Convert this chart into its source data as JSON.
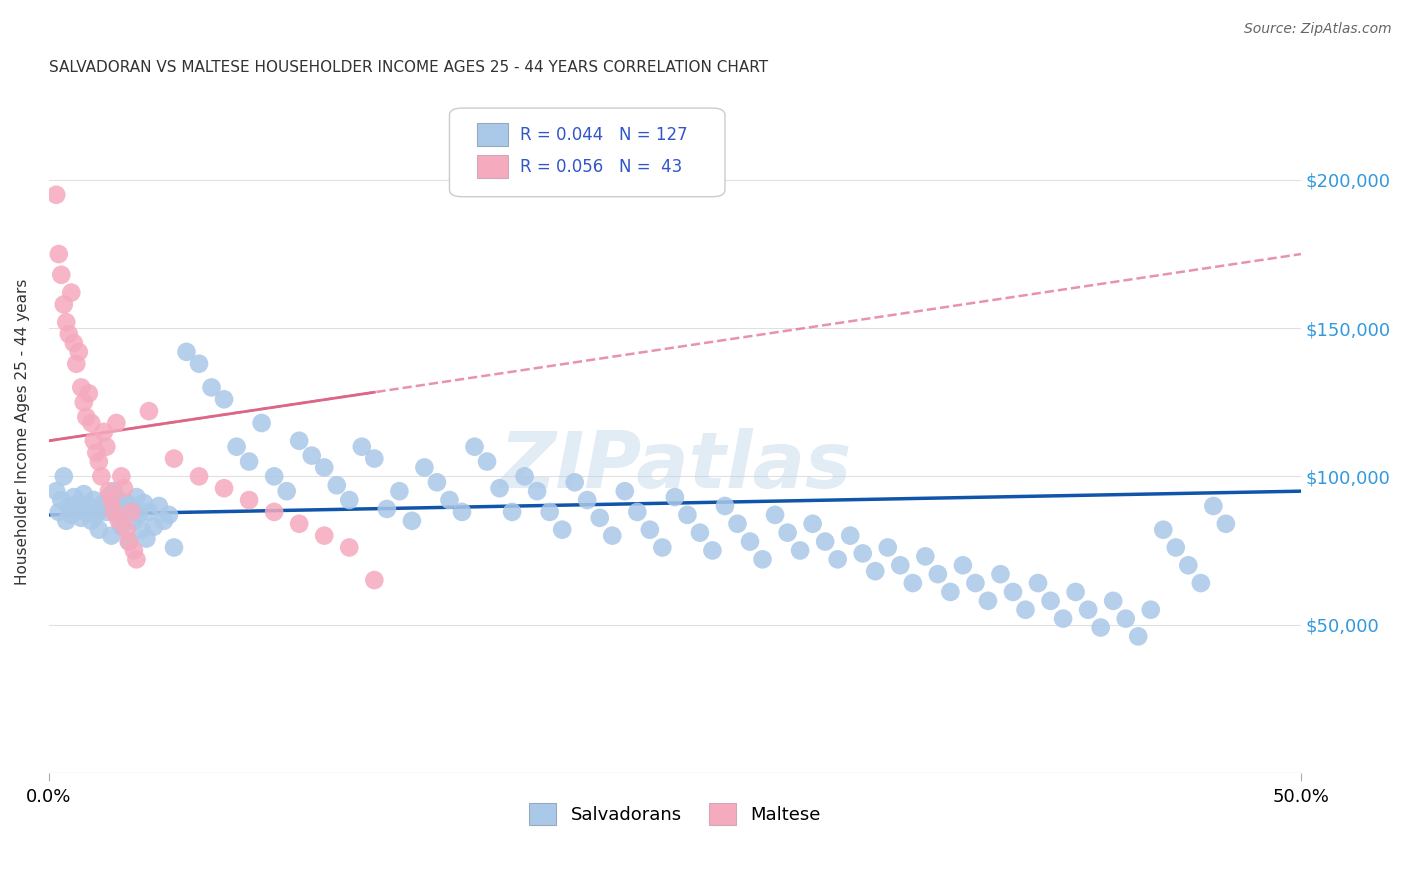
{
  "title": "SALVADORAN VS MALTESE HOUSEHOLDER INCOME AGES 25 - 44 YEARS CORRELATION CHART",
  "source": "Source: ZipAtlas.com",
  "ylabel": "Householder Income Ages 25 - 44 years",
  "watermark": "ZIPatlas",
  "xlim": [
    0.0,
    0.5
  ],
  "ylim": [
    0,
    230000
  ],
  "yticks": [
    0,
    50000,
    100000,
    150000,
    200000
  ],
  "ytick_labels": [
    "",
    "$50,000",
    "$100,000",
    "$150,000",
    "$200,000"
  ],
  "salvador_R": 0.044,
  "salvador_N": 127,
  "maltese_R": 0.056,
  "maltese_N": 43,
  "salvador_color": "#aac8e8",
  "maltese_color": "#f5aabe",
  "salvador_line_color": "#1155aa",
  "maltese_line_color": "#dd6688",
  "background_color": "#ffffff",
  "grid_color": "#e0e0e0",
  "title_color": "#333333",
  "right_label_color": "#3399dd",
  "salvador_x": [
    0.003,
    0.004,
    0.005,
    0.006,
    0.007,
    0.008,
    0.009,
    0.01,
    0.011,
    0.012,
    0.013,
    0.014,
    0.015,
    0.016,
    0.017,
    0.018,
    0.019,
    0.02,
    0.021,
    0.022,
    0.023,
    0.024,
    0.025,
    0.026,
    0.027,
    0.028,
    0.029,
    0.03,
    0.031,
    0.032,
    0.033,
    0.034,
    0.035,
    0.036,
    0.037,
    0.038,
    0.039,
    0.04,
    0.042,
    0.044,
    0.046,
    0.048,
    0.05,
    0.055,
    0.06,
    0.065,
    0.07,
    0.075,
    0.08,
    0.085,
    0.09,
    0.095,
    0.1,
    0.105,
    0.11,
    0.115,
    0.12,
    0.125,
    0.13,
    0.135,
    0.14,
    0.145,
    0.15,
    0.155,
    0.16,
    0.165,
    0.17,
    0.175,
    0.18,
    0.185,
    0.19,
    0.195,
    0.2,
    0.205,
    0.21,
    0.215,
    0.22,
    0.225,
    0.23,
    0.235,
    0.24,
    0.245,
    0.25,
    0.255,
    0.26,
    0.265,
    0.27,
    0.275,
    0.28,
    0.285,
    0.29,
    0.295,
    0.3,
    0.305,
    0.31,
    0.315,
    0.32,
    0.325,
    0.33,
    0.335,
    0.34,
    0.345,
    0.35,
    0.355,
    0.36,
    0.365,
    0.37,
    0.375,
    0.38,
    0.385,
    0.39,
    0.395,
    0.4,
    0.405,
    0.41,
    0.415,
    0.42,
    0.425,
    0.43,
    0.435,
    0.44,
    0.445,
    0.45,
    0.455,
    0.46,
    0.465,
    0.47
  ],
  "salvador_y": [
    95000,
    88000,
    92000,
    100000,
    85000,
    90000,
    87000,
    93000,
    89000,
    91000,
    86000,
    94000,
    88000,
    90000,
    85000,
    92000,
    87000,
    82000,
    89000,
    91000,
    88000,
    93000,
    80000,
    95000,
    87000,
    92000,
    83000,
    89000,
    91000,
    78000,
    90000,
    85000,
    93000,
    87000,
    82000,
    91000,
    79000,
    88000,
    83000,
    90000,
    85000,
    87000,
    76000,
    142000,
    138000,
    130000,
    126000,
    110000,
    105000,
    118000,
    100000,
    95000,
    112000,
    107000,
    103000,
    97000,
    92000,
    110000,
    106000,
    89000,
    95000,
    85000,
    103000,
    98000,
    92000,
    88000,
    110000,
    105000,
    96000,
    88000,
    100000,
    95000,
    88000,
    82000,
    98000,
    92000,
    86000,
    80000,
    95000,
    88000,
    82000,
    76000,
    93000,
    87000,
    81000,
    75000,
    90000,
    84000,
    78000,
    72000,
    87000,
    81000,
    75000,
    84000,
    78000,
    72000,
    80000,
    74000,
    68000,
    76000,
    70000,
    64000,
    73000,
    67000,
    61000,
    70000,
    64000,
    58000,
    67000,
    61000,
    55000,
    64000,
    58000,
    52000,
    61000,
    55000,
    49000,
    58000,
    52000,
    46000,
    55000,
    82000,
    76000,
    70000,
    64000,
    90000,
    84000
  ],
  "maltese_x": [
    0.003,
    0.004,
    0.005,
    0.006,
    0.007,
    0.008,
    0.009,
    0.01,
    0.011,
    0.012,
    0.013,
    0.014,
    0.015,
    0.016,
    0.017,
    0.018,
    0.019,
    0.02,
    0.021,
    0.022,
    0.023,
    0.024,
    0.025,
    0.026,
    0.027,
    0.028,
    0.029,
    0.03,
    0.031,
    0.032,
    0.033,
    0.034,
    0.035,
    0.04,
    0.05,
    0.06,
    0.07,
    0.08,
    0.09,
    0.1,
    0.11,
    0.12,
    0.13
  ],
  "maltese_y": [
    195000,
    175000,
    168000,
    158000,
    152000,
    148000,
    162000,
    145000,
    138000,
    142000,
    130000,
    125000,
    120000,
    128000,
    118000,
    112000,
    108000,
    105000,
    100000,
    115000,
    110000,
    95000,
    92000,
    88000,
    118000,
    85000,
    100000,
    96000,
    82000,
    78000,
    88000,
    75000,
    72000,
    122000,
    106000,
    100000,
    96000,
    92000,
    88000,
    84000,
    80000,
    76000,
    65000
  ],
  "sal_trend_x0": 0.0,
  "sal_trend_y0": 87000,
  "sal_trend_x1": 0.5,
  "sal_trend_y1": 95000,
  "mal_trend_x0": 0.0,
  "mal_trend_y0": 112000,
  "mal_trend_x1": 0.5,
  "mal_trend_y1": 175000
}
